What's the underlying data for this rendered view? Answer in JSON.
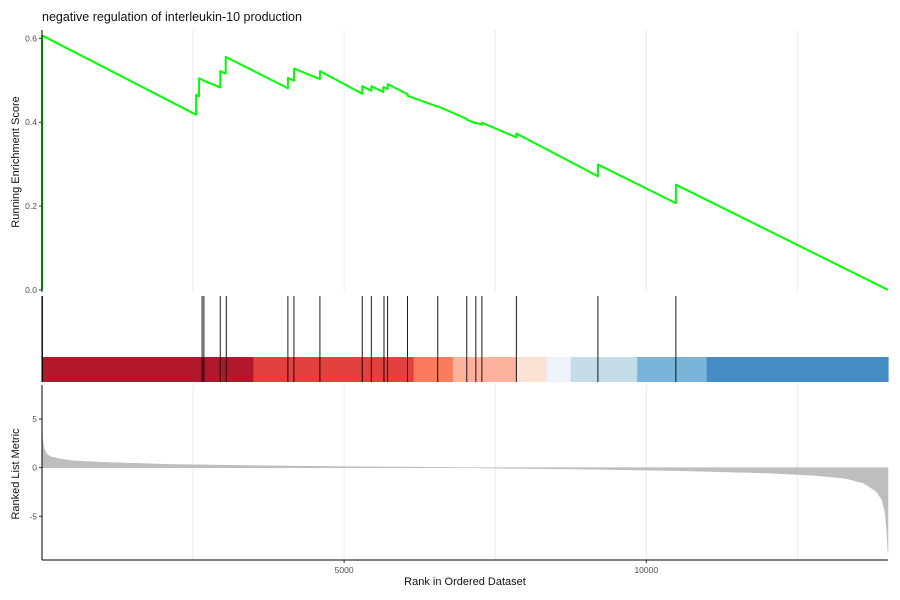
{
  "chart_data": {
    "type": "line",
    "title": "negative regulation of interleukin-10 production",
    "xlabel": "Rank in Ordered Dataset",
    "xlim": [
      1,
      14000
    ],
    "x_ticks": [
      5000,
      10000
    ],
    "x_tick_labels": [
      "5000",
      "10000"
    ],
    "grid": true,
    "grid_x": [
      2500,
      5000,
      7500,
      10000,
      12500
    ],
    "panels": {
      "running_score": {
        "ylabel": "Running Enrichment Score",
        "ylim": [
          -0.005,
          0.62
        ],
        "y_ticks": [
          0.0,
          0.2,
          0.4,
          0.6
        ],
        "y_tick_labels": [
          "0.0",
          "0.2",
          "0.4",
          "0.6"
        ],
        "line_color": "#00ff00",
        "series": [
          {
            "x": [
              1,
              2,
              2550,
              2551,
              2600,
              2601,
              2750,
              2751,
              2950,
              2951,
              3040,
              3041,
              4070,
              4071,
              4170,
              4171,
              4600,
              4601,
              5300,
              5301,
              5450,
              5451,
              5650,
              5651,
              5720,
              5721,
              6050,
              6051,
              6550,
              6551,
              7030,
              7031,
              7180,
              7181,
              7280,
              7281,
              7850,
              7851,
              9200,
              9201,
              10490,
              10491,
              14000
            ],
            "y": [
              0.0,
              0.607,
              0.418,
              0.465,
              0.462,
              0.505,
              0.494,
              0.495,
              0.483,
              0.522,
              0.516,
              0.556,
              0.481,
              0.506,
              0.499,
              0.528,
              0.503,
              0.522,
              0.468,
              0.486,
              0.475,
              0.486,
              0.472,
              0.484,
              0.479,
              0.491,
              0.467,
              0.463,
              0.437,
              0.438,
              0.408,
              0.406,
              0.397,
              0.399,
              0.394,
              0.399,
              0.364,
              0.373,
              0.271,
              0.299,
              0.207,
              0.251,
              0.0
            ]
          }
        ]
      },
      "hits": {
        "positions": [
          1,
          2,
          5,
          8,
          2650,
          2680,
          2950,
          3050,
          4070,
          4170,
          4600,
          5300,
          5450,
          5660,
          5720,
          6050,
          6550,
          7030,
          7180,
          7280,
          7850,
          9200,
          10490
        ]
      },
      "color_bar": {
        "segments": [
          {
            "from": 1,
            "to": 3500,
            "color": "#b2182b"
          },
          {
            "from": 3500,
            "to": 6150,
            "color": "#e2413d"
          },
          {
            "from": 6150,
            "to": 6800,
            "color": "#fb7b5e"
          },
          {
            "from": 6800,
            "to": 7850,
            "color": "#fcb29c"
          },
          {
            "from": 7850,
            "to": 8350,
            "color": "#fde1d5"
          },
          {
            "from": 8350,
            "to": 8750,
            "color": "#eef2fa"
          },
          {
            "from": 8750,
            "to": 9850,
            "color": "#c4dce8"
          },
          {
            "from": 9850,
            "to": 11000,
            "color": "#78b5d9"
          },
          {
            "from": 11000,
            "to": 14000,
            "color": "#448cc3"
          }
        ]
      },
      "ranked_metric": {
        "ylabel": "Ranked List Metric",
        "ylim": [
          -9.5,
          8.5
        ],
        "y_ticks": [
          -5,
          0,
          5
        ],
        "y_tick_labels": [
          "-5",
          "0",
          "5"
        ],
        "fill_color": "#bebebe",
        "series": [
          {
            "x": [
              1,
              10,
              30,
              80,
              150,
              300,
              500,
              1000,
              2000,
              3500,
              5000,
              6500,
              7000,
              7500,
              9000,
              10500,
              12000,
              12800,
              13300,
              13600,
              13800,
              13900,
              13950,
              13980,
              14000
            ],
            "y": [
              4.5,
              3.0,
              2.0,
              1.4,
              1.1,
              0.9,
              0.7,
              0.55,
              0.35,
              0.2,
              0.1,
              0.03,
              0.0,
              -0.05,
              -0.15,
              -0.3,
              -0.55,
              -0.8,
              -1.1,
              -1.6,
              -2.4,
              -3.3,
              -4.5,
              -6.5,
              -8.8
            ]
          }
        ]
      }
    }
  }
}
